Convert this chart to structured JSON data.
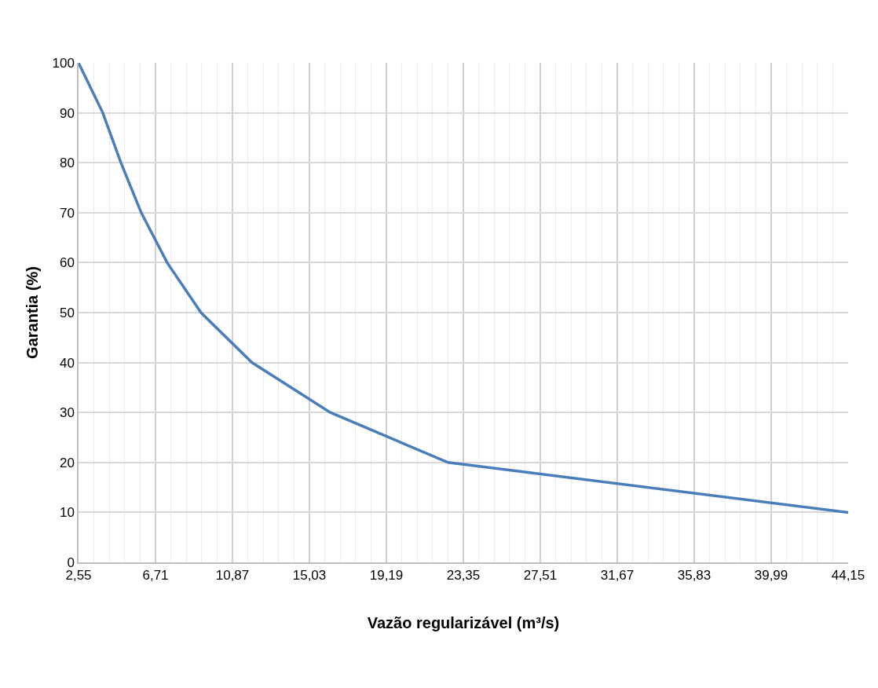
{
  "chart_data": {
    "type": "line",
    "xlabel": "Vazão regularizável (m³/s)",
    "ylabel": "Garantia (%)",
    "x": [
      2.55,
      3.86,
      4.84,
      5.94,
      7.34,
      9.17,
      11.92,
      16.16,
      22.52,
      44.15
    ],
    "series": [
      {
        "color": "#4a7ebb",
        "values": [
          100,
          90,
          80,
          70,
          60,
          50,
          40,
          30,
          20,
          10
        ]
      }
    ],
    "xlim": [
      2.55,
      44.15
    ],
    "xticks": [
      {
        "value": 2.55,
        "label": "2,55"
      },
      {
        "value": 6.71,
        "label": "6,71"
      },
      {
        "value": 10.87,
        "label": "10,87"
      },
      {
        "value": 15.03,
        "label": "15,03"
      },
      {
        "value": 19.19,
        "label": "19,19"
      },
      {
        "value": 23.35,
        "label": "23,35"
      },
      {
        "value": 27.51,
        "label": "27,51"
      },
      {
        "value": 31.67,
        "label": "31,67"
      },
      {
        "value": 35.83,
        "label": "35,83"
      },
      {
        "value": 39.99,
        "label": "39,99"
      },
      {
        "value": 44.15,
        "label": "44,15"
      }
    ],
    "ylim": [
      0,
      100
    ],
    "yticks": [
      0,
      10,
      20,
      30,
      40,
      50,
      60,
      70,
      80,
      90,
      100
    ],
    "grid": true,
    "marker": "none",
    "line_style": "solid"
  }
}
